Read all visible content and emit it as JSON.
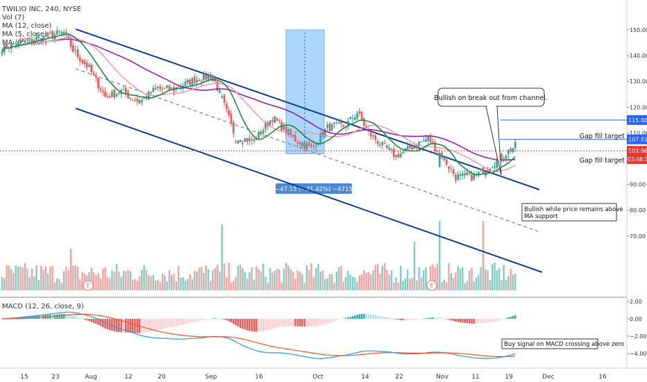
{
  "header": {
    "symbol_line": "TWILIO INC, 240, NYSE",
    "indicators": [
      "Vol (7)",
      "MA (12, close)",
      "MA (5, close)",
      "MA (9, close)"
    ],
    "macd_label": "MACD (12, 26, close, 9)"
  },
  "colors": {
    "up": "#26a69a",
    "down": "#ef5350",
    "ma_fast": "#1b8a3a",
    "ma_mid": "#f48fb1",
    "ma_slow": "#8e24aa",
    "channel": "#0d3b9c",
    "macd_line": "#2196f3",
    "signal_line": "#f4511e",
    "hline": "#2962ff",
    "price_line": "#e53935",
    "measure_fill": "#90caf9"
  },
  "chart_data": [
    {
      "type": "candlestick",
      "title": "TWILIO INC, 240, NYSE",
      "x_labels": [
        "15",
        "23",
        "Aug",
        "12",
        "20",
        "Sep",
        "16",
        "Oct",
        "14",
        "22",
        "Nov",
        "11",
        "19",
        "Dec",
        "16"
      ],
      "y_ticks": [
        150.0,
        140.0,
        130.0,
        120.0,
        110.0,
        90.0,
        80.0,
        70.0
      ],
      "y_tick_labels": [
        "150.00",
        "140.00",
        "130.00",
        "120.00",
        "110.00",
        "90.00",
        "80.00",
        "70.00"
      ],
      "ylim": [
        65,
        155
      ],
      "anchors": [
        [
          0,
          143
        ],
        [
          12,
          146
        ],
        [
          27,
          149
        ],
        [
          31,
          142
        ],
        [
          38,
          135
        ],
        [
          45,
          124
        ],
        [
          52,
          126
        ],
        [
          60,
          122
        ],
        [
          67,
          127
        ],
        [
          75,
          127
        ],
        [
          85,
          131
        ],
        [
          92,
          132
        ],
        [
          96,
          123
        ],
        [
          102,
          108
        ],
        [
          110,
          107
        ],
        [
          118,
          116
        ],
        [
          127,
          108
        ],
        [
          135,
          104
        ],
        [
          142,
          112
        ],
        [
          150,
          113
        ],
        [
          155,
          118
        ],
        [
          160,
          110
        ],
        [
          166,
          105
        ],
        [
          172,
          101
        ],
        [
          178,
          104
        ],
        [
          186,
          108
        ],
        [
          192,
          101
        ],
        [
          198,
          93
        ],
        [
          206,
          93
        ],
        [
          214,
          98
        ],
        [
          224,
          105
        ]
      ],
      "bar_count": 225,
      "moving_averages": [
        "MA (12, close)",
        "MA (5, close)",
        "MA (9, close)"
      ],
      "annotations": [
        "Bullish on break out from channel.",
        "Gap fill target",
        "Gap fill target",
        "Bullish while price remains above MA support",
        "Buy signal on MACD crossing above zero"
      ],
      "price_labels": [
        {
          "text": "115.00",
          "value": 115.0
        },
        {
          "text": "107.51",
          "value": 107.51
        },
        {
          "text": "103.06",
          "value": 103.06
        }
      ],
      "countdown": "03:48:11",
      "measure": {
        "text": "−47.15 (−31.42%) −4715",
        "from_value": 150.0,
        "to_value": 103.0
      },
      "earnings_marker": "E"
    },
    {
      "type": "bar",
      "title": "Vol (7)",
      "y_ticks": [],
      "spikes": [
        [
          96,
          0.95
        ],
        [
          191,
          1.0
        ],
        [
          210,
          1.0
        ],
        [
          180,
          0.7
        ],
        [
          30,
          0.6
        ]
      ]
    },
    {
      "type": "line",
      "title": "MACD (12, 26, close, 9)",
      "y_ticks": [
        2.0,
        0.0,
        -2.0,
        -4.0
      ],
      "y_tick_labels": [
        "2.00",
        "0.00",
        "−2.00",
        "−4.00"
      ],
      "ylim": [
        -5.5,
        2.6
      ],
      "series": [
        {
          "role": "macd",
          "values": "derived from price closes (EMA12 − EMA26)"
        },
        {
          "role": "signal",
          "values": "EMA9 of MACD"
        }
      ]
    }
  ]
}
